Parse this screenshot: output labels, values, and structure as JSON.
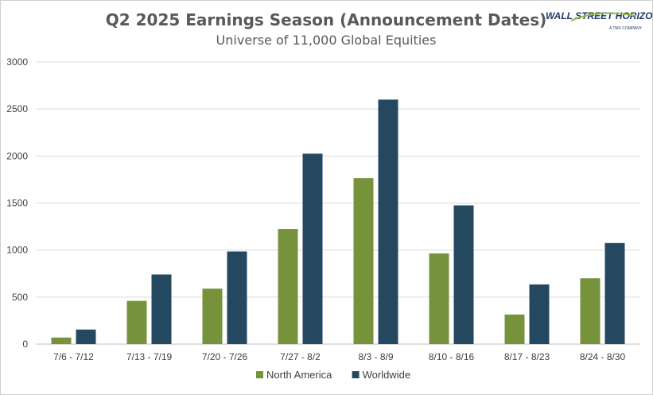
{
  "logo": {
    "name": "WALL STREET HORIZON",
    "tagline": "A TMX COMPANY"
  },
  "colors": {
    "north_america": "#76933C",
    "worldwide": "#254861",
    "grid": "#D9D9D9",
    "axis": "#BFBFBF",
    "text": "#595959"
  },
  "chart_data": {
    "type": "bar",
    "title": "Q2 2025 Earnings Season (Announcement Dates)",
    "subtitle": "Universe of 11,000 Global Equities",
    "categories": [
      "7/6 - 7/12",
      "7/13 - 7/19",
      "7/20 - 7/26",
      "7/27 - 8/2",
      "8/3 - 8/9",
      "8/10 - 8/16",
      "8/17 - 8/23",
      "8/24 - 8/30"
    ],
    "series": [
      {
        "name": "North America",
        "color": "#76933C",
        "values": [
          70,
          460,
          590,
          1225,
          1765,
          965,
          315,
          700
        ]
      },
      {
        "name": "Worldwide",
        "color": "#254861",
        "values": [
          155,
          740,
          985,
          2025,
          2600,
          1475,
          635,
          1075
        ]
      }
    ],
    "ylim": [
      0,
      3000
    ],
    "yticks": [
      0,
      500,
      1000,
      1500,
      2000,
      2500,
      3000
    ],
    "grid": true,
    "legend_position": "bottom"
  }
}
